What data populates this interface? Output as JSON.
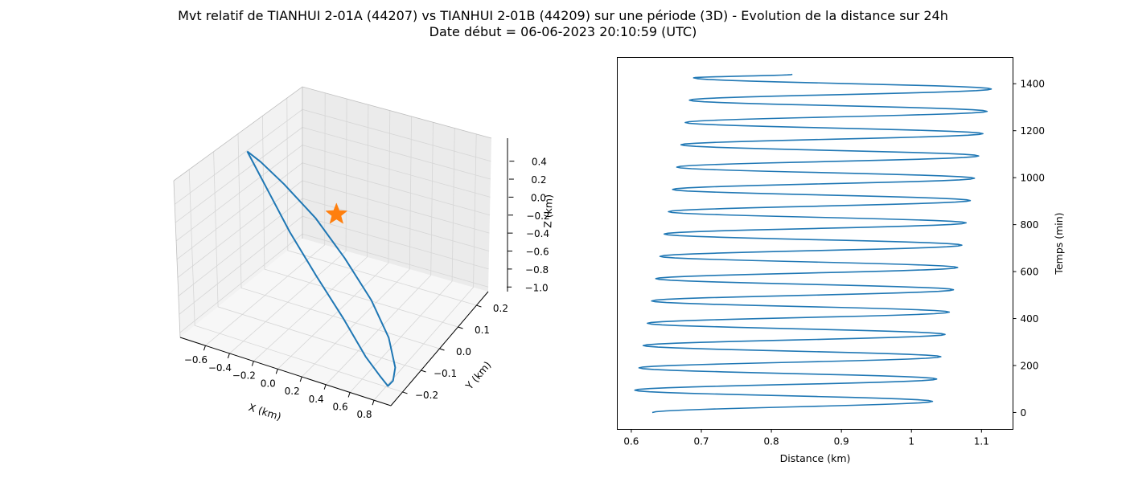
{
  "figure": {
    "title_line1": "Mvt relatif de TIANHUI 2-01A (44207) vs TIANHUI 2-01B (44209) sur une période (3D) - Evolution de la distance sur 24h",
    "title_line2": "Date début = 06-06-2023 20:10:59 (UTC)"
  },
  "chart_data": [
    {
      "type": "line3d",
      "xlabel": "X (km)",
      "ylabel": "Y (km)",
      "zlabel": "Z (km)",
      "xticks": [
        "−0.6",
        "−0.4",
        "−0.2",
        "0.0",
        "0.2",
        "0.4",
        "0.6",
        "0.8"
      ],
      "yticks": [
        "−0.2",
        "−0.1",
        "0.0",
        "0.1",
        "0.2"
      ],
      "zticks": [
        "−1.0",
        "−0.8",
        "−0.6",
        "−0.4",
        "−0.2",
        "0.0",
        "0.2",
        "0.4"
      ],
      "xlim": [
        -0.7,
        0.85
      ],
      "ylim": [
        -0.25,
        0.25
      ],
      "zlim": [
        -1.0,
        0.5
      ],
      "grid": true,
      "series_color": "#1f77b4",
      "marker_color": "#ff7f0e",
      "marker": {
        "symbol": "star",
        "x": 0.0,
        "y": 0.0,
        "z": 0.0
      },
      "trajectory": [
        {
          "x": -0.62,
          "y": -0.02,
          "z": 0.38
        },
        {
          "x": -0.55,
          "y": -0.03,
          "z": 0.3
        },
        {
          "x": -0.4,
          "y": -0.05,
          "z": 0.12
        },
        {
          "x": -0.2,
          "y": -0.08,
          "z": -0.1
        },
        {
          "x": 0.05,
          "y": -0.11,
          "z": -0.36
        },
        {
          "x": 0.3,
          "y": -0.14,
          "z": -0.6
        },
        {
          "x": 0.52,
          "y": -0.17,
          "z": -0.82
        },
        {
          "x": 0.64,
          "y": -0.18,
          "z": -0.93
        },
        {
          "x": 0.72,
          "y": -0.19,
          "z": -0.98
        },
        {
          "x": 0.74,
          "y": -0.18,
          "z": -0.94
        },
        {
          "x": 0.72,
          "y": -0.16,
          "z": -0.86
        },
        {
          "x": 0.6,
          "y": -0.12,
          "z": -0.7
        },
        {
          "x": 0.4,
          "y": -0.08,
          "z": -0.5
        },
        {
          "x": 0.15,
          "y": -0.05,
          "z": -0.26
        },
        {
          "x": -0.1,
          "y": -0.03,
          "z": -0.02
        },
        {
          "x": -0.35,
          "y": -0.02,
          "z": 0.18
        },
        {
          "x": -0.52,
          "y": -0.02,
          "z": 0.32
        },
        {
          "x": -0.62,
          "y": -0.02,
          "z": 0.38
        }
      ]
    },
    {
      "type": "line",
      "xlabel": "Distance (km)",
      "ylabel": "Temps (min)",
      "xlim": [
        0.58,
        1.145
      ],
      "ylim": [
        -72,
        1512
      ],
      "xticks": [
        0.6,
        0.7,
        0.8,
        0.9,
        1.0,
        1.1
      ],
      "yticks": [
        0,
        200,
        400,
        600,
        800,
        1000,
        1200,
        1400
      ],
      "grid": false,
      "ytick_side": "right",
      "series_color": "#1f77b4",
      "points": [
        {
          "t": 0,
          "d": 0.63
        },
        {
          "t": 47.5,
          "d": 1.03
        },
        {
          "t": 95,
          "d": 0.605
        },
        {
          "t": 142.5,
          "d": 1.036
        },
        {
          "t": 190,
          "d": 0.611
        },
        {
          "t": 237.5,
          "d": 1.042
        },
        {
          "t": 285,
          "d": 0.617
        },
        {
          "t": 332.5,
          "d": 1.048
        },
        {
          "t": 380,
          "d": 0.623
        },
        {
          "t": 427.5,
          "d": 1.054
        },
        {
          "t": 475,
          "d": 0.629
        },
        {
          "t": 522.5,
          "d": 1.06
        },
        {
          "t": 570,
          "d": 0.635
        },
        {
          "t": 617.5,
          "d": 1.066
        },
        {
          "t": 665,
          "d": 0.641
        },
        {
          "t": 712.5,
          "d": 1.072
        },
        {
          "t": 760,
          "d": 0.647
        },
        {
          "t": 807.5,
          "d": 1.078
        },
        {
          "t": 855,
          "d": 0.653
        },
        {
          "t": 902.5,
          "d": 1.084
        },
        {
          "t": 950,
          "d": 0.659
        },
        {
          "t": 997.5,
          "d": 1.09
        },
        {
          "t": 1045,
          "d": 0.665
        },
        {
          "t": 1092.5,
          "d": 1.096
        },
        {
          "t": 1140,
          "d": 0.671
        },
        {
          "t": 1187.5,
          "d": 1.102
        },
        {
          "t": 1235,
          "d": 0.677
        },
        {
          "t": 1282.5,
          "d": 1.108
        },
        {
          "t": 1330,
          "d": 0.683
        },
        {
          "t": 1377.5,
          "d": 1.114
        },
        {
          "t": 1425,
          "d": 0.689
        },
        {
          "t": 1440,
          "d": 0.83
        }
      ]
    }
  ]
}
